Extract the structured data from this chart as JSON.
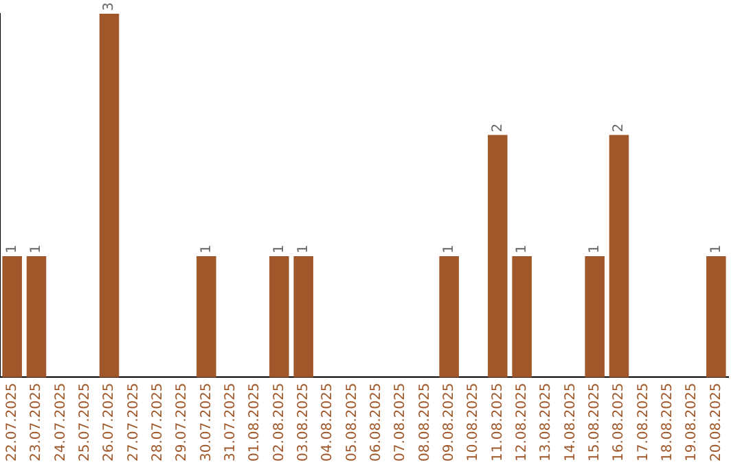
{
  "chart_data": {
    "type": "bar",
    "categories": [
      "22.07.2025",
      "23.07.2025",
      "24.07.2025",
      "25.07.2025",
      "26.07.2025",
      "27.07.2025",
      "28.07.2025",
      "29.07.2025",
      "30.07.2025",
      "31.07.2025",
      "01.08.2025",
      "02.08.2025",
      "03.08.2025",
      "04.08.2025",
      "05.08.2025",
      "06.08.2025",
      "07.08.2025",
      "08.08.2025",
      "09.08.2025",
      "10.08.2025",
      "11.08.2025",
      "12.08.2025",
      "13.08.2025",
      "14.08.2025",
      "15.08.2025",
      "16.08.2025",
      "17.08.2025",
      "18.08.2025",
      "19.08.2025",
      "20.08.2025"
    ],
    "values": [
      1,
      1,
      0,
      0,
      3,
      0,
      0,
      0,
      1,
      0,
      0,
      1,
      1,
      0,
      0,
      0,
      0,
      0,
      1,
      0,
      2,
      1,
      0,
      0,
      1,
      2,
      0,
      0,
      0,
      1
    ],
    "value_labels": [
      "1",
      "1",
      null,
      null,
      "3",
      null,
      null,
      null,
      "1",
      null,
      null,
      "1",
      "1",
      null,
      null,
      null,
      null,
      null,
      "1",
      null,
      "2",
      "1",
      null,
      null,
      "1",
      "2",
      null,
      null,
      null,
      "1"
    ],
    "color": "#a0582a",
    "grid": false,
    "legend": false,
    "tick_labels": "x"
  }
}
